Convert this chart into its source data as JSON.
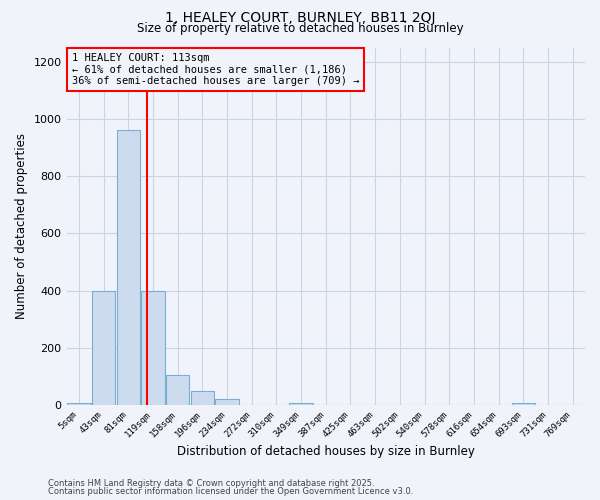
{
  "title_line1": "1, HEALEY COURT, BURNLEY, BB11 2QJ",
  "title_line2": "Size of property relative to detached houses in Burnley",
  "xlabel": "Distribution of detached houses by size in Burnley",
  "ylabel": "Number of detached properties",
  "bar_color": "#ccdcee",
  "bar_edge_color": "#7aadd4",
  "bin_labels": [
    "5sqm",
    "43sqm",
    "81sqm",
    "119sqm",
    "158sqm",
    "196sqm",
    "234sqm",
    "272sqm",
    "310sqm",
    "349sqm",
    "387sqm",
    "425sqm",
    "463sqm",
    "502sqm",
    "540sqm",
    "578sqm",
    "616sqm",
    "654sqm",
    "693sqm",
    "731sqm",
    "769sqm"
  ],
  "bar_values": [
    5,
    400,
    960,
    400,
    105,
    50,
    20,
    0,
    0,
    5,
    0,
    0,
    0,
    0,
    0,
    0,
    0,
    0,
    5,
    0,
    0
  ],
  "ylim": [
    0,
    1250
  ],
  "yticks": [
    0,
    200,
    400,
    600,
    800,
    1000,
    1200
  ],
  "red_line_x": 2.74,
  "annotation_title": "1 HEALEY COURT: 113sqm",
  "annotation_line1": "← 61% of detached houses are smaller (1,186)",
  "annotation_line2": "36% of semi-detached houses are larger (709) →",
  "footer1": "Contains HM Land Registry data © Crown copyright and database right 2025.",
  "footer2": "Contains public sector information licensed under the Open Government Licence v3.0.",
  "background_color": "#f0f4fa",
  "grid_color": "#c8d4e8"
}
